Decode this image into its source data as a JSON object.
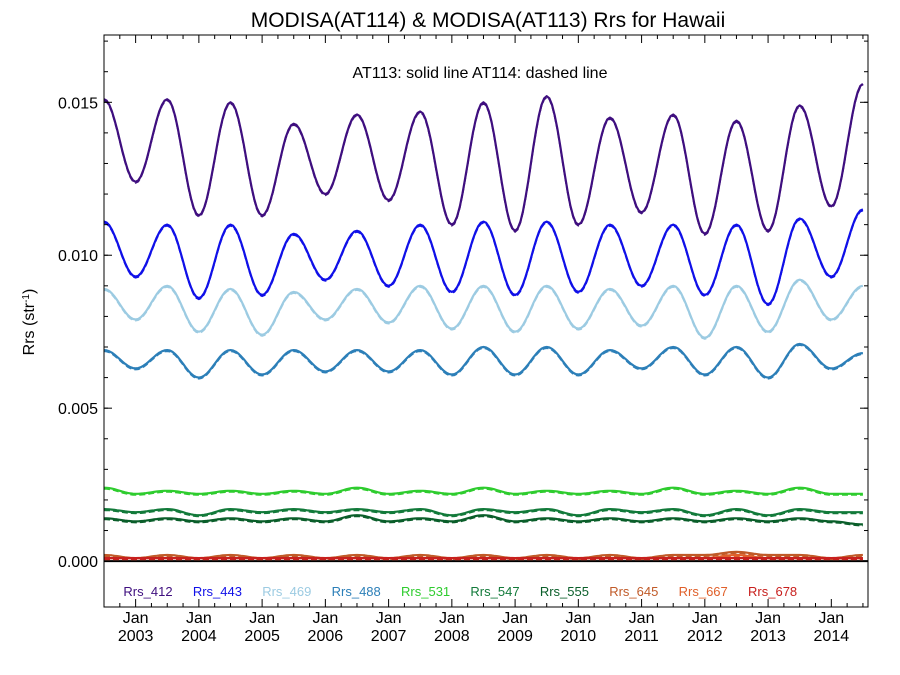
{
  "chart_data": {
    "type": "line",
    "title": "MODISA(AT114) & MODISA(AT113)  Rrs for Hawaii",
    "ylabel": "Rrs (str",
    "ylabel_sup": "-1",
    "ylabel_close": ")",
    "annotation": "AT113: solid line   AT114: dashed line",
    "ylim": [
      -0.0015,
      0.0172
    ],
    "yticks": [
      {
        "value": 0.0,
        "label": "0.000"
      },
      {
        "value": 0.005,
        "label": "0.005"
      },
      {
        "value": 0.01,
        "label": "0.010"
      },
      {
        "value": 0.015,
        "label": "0.015"
      }
    ],
    "xlim": [
      2002.5,
      2014.58
    ],
    "xticks": [
      {
        "value": 2003.0,
        "month": "Jan",
        "year": "2003"
      },
      {
        "value": 2004.0,
        "month": "Jan",
        "year": "2004"
      },
      {
        "value": 2005.0,
        "month": "Jan",
        "year": "2005"
      },
      {
        "value": 2006.0,
        "month": "Jan",
        "year": "2006"
      },
      {
        "value": 2007.0,
        "month": "Jan",
        "year": "2007"
      },
      {
        "value": 2008.0,
        "month": "Jan",
        "year": "2008"
      },
      {
        "value": 2009.0,
        "month": "Jan",
        "year": "2009"
      },
      {
        "value": 2010.0,
        "month": "Jan",
        "year": "2010"
      },
      {
        "value": 2011.0,
        "month": "Jan",
        "year": "2011"
      },
      {
        "value": 2012.0,
        "month": "Jan",
        "year": "2012"
      },
      {
        "value": 2013.0,
        "month": "Jan",
        "year": "2013"
      },
      {
        "value": 2014.0,
        "month": "Jan",
        "year": "2014"
      }
    ],
    "zero_line": 0.0,
    "x": [
      2002.5,
      2003.0,
      2003.5,
      2004.0,
      2004.5,
      2005.0,
      2005.5,
      2006.0,
      2006.5,
      2007.0,
      2007.5,
      2008.0,
      2008.5,
      2009.0,
      2009.5,
      2010.0,
      2010.5,
      2011.0,
      2011.5,
      2012.0,
      2012.5,
      2013.0,
      2013.5,
      2014.0,
      2014.5
    ],
    "series": [
      {
        "name": "Rrs_412",
        "color": "#3f0f7f",
        "values": [
          0.0151,
          0.0124,
          0.0151,
          0.0113,
          0.015,
          0.0113,
          0.0143,
          0.012,
          0.0146,
          0.0118,
          0.0147,
          0.011,
          0.015,
          0.0108,
          0.0152,
          0.011,
          0.0145,
          0.0114,
          0.0146,
          0.0107,
          0.0144,
          0.0108,
          0.0149,
          0.0116,
          0.0156
        ]
      },
      {
        "name": "Rrs_443",
        "color": "#1010e8",
        "values": [
          0.0111,
          0.0093,
          0.011,
          0.0086,
          0.011,
          0.0087,
          0.0107,
          0.0092,
          0.0108,
          0.009,
          0.011,
          0.0088,
          0.0111,
          0.0087,
          0.0111,
          0.0088,
          0.011,
          0.009,
          0.011,
          0.0087,
          0.011,
          0.0084,
          0.0112,
          0.0093,
          0.0115
        ]
      },
      {
        "name": "Rrs_469",
        "color": "#9ccbe2",
        "values": [
          0.0089,
          0.0079,
          0.009,
          0.0075,
          0.0089,
          0.0074,
          0.0088,
          0.0079,
          0.0089,
          0.0078,
          0.009,
          0.0076,
          0.009,
          0.0075,
          0.009,
          0.0076,
          0.0089,
          0.0077,
          0.009,
          0.0073,
          0.009,
          0.0075,
          0.0092,
          0.0079,
          0.009
        ]
      },
      {
        "name": "Rrs_488",
        "color": "#2c7fb8",
        "values": [
          0.0069,
          0.0063,
          0.0069,
          0.006,
          0.0069,
          0.0061,
          0.0069,
          0.0062,
          0.0069,
          0.0062,
          0.0069,
          0.0061,
          0.007,
          0.0061,
          0.007,
          0.0061,
          0.0069,
          0.0063,
          0.007,
          0.0061,
          0.007,
          0.006,
          0.0071,
          0.0063,
          0.0068
        ]
      },
      {
        "name": "Rrs_531",
        "color": "#2ecc2e",
        "values": [
          0.0024,
          0.0022,
          0.0023,
          0.0022,
          0.0023,
          0.0022,
          0.0023,
          0.0022,
          0.0024,
          0.0022,
          0.0023,
          0.0022,
          0.0024,
          0.0022,
          0.0023,
          0.0022,
          0.0023,
          0.0022,
          0.0024,
          0.0022,
          0.0023,
          0.0022,
          0.0024,
          0.0022,
          0.0022
        ]
      },
      {
        "name": "Rrs_547",
        "color": "#127a3a",
        "values": [
          0.0017,
          0.0016,
          0.0017,
          0.0015,
          0.0017,
          0.0016,
          0.0017,
          0.0016,
          0.0017,
          0.0016,
          0.0017,
          0.0015,
          0.0017,
          0.0016,
          0.0017,
          0.0015,
          0.0017,
          0.0016,
          0.0017,
          0.0015,
          0.0017,
          0.0015,
          0.0017,
          0.0016,
          0.0016
        ]
      },
      {
        "name": "Rrs_555",
        "color": "#0a5e2a",
        "values": [
          0.0014,
          0.0013,
          0.0014,
          0.0013,
          0.0014,
          0.0013,
          0.0014,
          0.0013,
          0.0015,
          0.0013,
          0.0014,
          0.0013,
          0.0015,
          0.0013,
          0.0014,
          0.0013,
          0.0014,
          0.0013,
          0.0014,
          0.0013,
          0.0014,
          0.0013,
          0.0014,
          0.0013,
          0.0012
        ]
      },
      {
        "name": "Rrs_645",
        "color": "#c05a28",
        "values": [
          0.0002,
          0.0001,
          0.0002,
          0.0001,
          0.0002,
          0.0001,
          0.0002,
          0.0001,
          0.0002,
          0.0001,
          0.0002,
          0.0001,
          0.0002,
          0.0001,
          0.0002,
          0.0001,
          0.0002,
          0.0001,
          0.0002,
          0.0002,
          0.0003,
          0.0002,
          0.0002,
          0.0001,
          0.0002
        ]
      },
      {
        "name": "Rrs_667",
        "color": "#e0602a",
        "values": [
          0.0001,
          0.0001,
          0.0001,
          0.0001,
          0.0001,
          0.0001,
          0.0001,
          0.0001,
          0.0001,
          0.0001,
          0.0001,
          0.0001,
          0.0001,
          0.0001,
          0.0001,
          0.0001,
          0.0001,
          0.0001,
          0.0001,
          0.0001,
          0.0002,
          0.0001,
          0.0001,
          0.0001,
          0.0001
        ]
      },
      {
        "name": "Rrs_678",
        "color": "#c8201e",
        "values": [
          0.0001,
          0.0001,
          0.0001,
          0.0001,
          0.0001,
          0.0001,
          0.0001,
          0.0001,
          0.0001,
          0.0001,
          0.0001,
          0.0001,
          0.0001,
          0.0001,
          0.0001,
          0.0001,
          0.0001,
          0.0001,
          0.0001,
          0.0001,
          0.0001,
          0.0001,
          0.0001,
          0.0001,
          0.0001
        ]
      }
    ]
  }
}
